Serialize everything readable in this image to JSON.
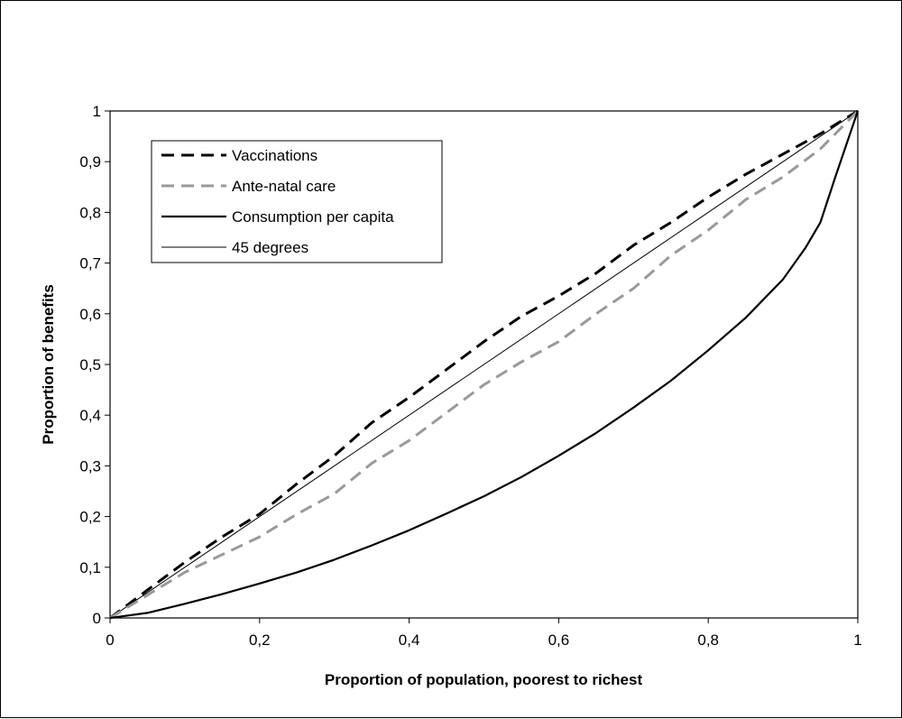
{
  "chart_data": {
    "type": "line",
    "title": "",
    "xlabel": "Proportion of population, poorest to richest",
    "ylabel": "Proportion of benefits",
    "xlim": [
      0,
      1
    ],
    "ylim": [
      0,
      1
    ],
    "grid": false,
    "legend_position": "top-left",
    "x_ticks": [
      {
        "value": 0,
        "label": "0"
      },
      {
        "value": 0.2,
        "label": "0,2"
      },
      {
        "value": 0.4,
        "label": "0,4"
      },
      {
        "value": 0.6,
        "label": "0,6"
      },
      {
        "value": 0.8,
        "label": "0,8"
      },
      {
        "value": 1,
        "label": "1"
      }
    ],
    "y_ticks": [
      {
        "value": 0,
        "label": "0"
      },
      {
        "value": 0.1,
        "label": "0,1"
      },
      {
        "value": 0.2,
        "label": "0,2"
      },
      {
        "value": 0.3,
        "label": "0,3"
      },
      {
        "value": 0.4,
        "label": "0,4"
      },
      {
        "value": 0.5,
        "label": "0,5"
      },
      {
        "value": 0.6,
        "label": "0,6"
      },
      {
        "value": 0.7,
        "label": "0,7"
      },
      {
        "value": 0.8,
        "label": "0,8"
      },
      {
        "value": 0.9,
        "label": "0,9"
      },
      {
        "value": 1,
        "label": "1"
      }
    ],
    "series": [
      {
        "name": "Vaccinations",
        "color": "#000000",
        "style": "dashed-thick",
        "x": [
          0,
          0.05,
          0.1,
          0.15,
          0.2,
          0.25,
          0.3,
          0.35,
          0.4,
          0.45,
          0.5,
          0.55,
          0.6,
          0.65,
          0.7,
          0.75,
          0.8,
          0.85,
          0.9,
          0.95,
          1
        ],
        "y": [
          0,
          0.055,
          0.11,
          0.16,
          0.205,
          0.265,
          0.32,
          0.385,
          0.435,
          0.49,
          0.545,
          0.595,
          0.635,
          0.68,
          0.735,
          0.78,
          0.83,
          0.875,
          0.915,
          0.955,
          1
        ]
      },
      {
        "name": "Ante-natal care",
        "color": "#999999",
        "style": "dashed-thick",
        "x": [
          0,
          0.05,
          0.1,
          0.15,
          0.2,
          0.25,
          0.3,
          0.35,
          0.4,
          0.45,
          0.5,
          0.55,
          0.6,
          0.65,
          0.7,
          0.75,
          0.8,
          0.85,
          0.9,
          0.95,
          1
        ],
        "y": [
          0,
          0.045,
          0.09,
          0.125,
          0.16,
          0.205,
          0.245,
          0.305,
          0.35,
          0.405,
          0.46,
          0.505,
          0.545,
          0.6,
          0.65,
          0.715,
          0.765,
          0.825,
          0.87,
          0.925,
          1
        ]
      },
      {
        "name": "Consumption per capita",
        "color": "#000000",
        "style": "solid-thick",
        "x": [
          0,
          0.05,
          0.1,
          0.15,
          0.2,
          0.25,
          0.3,
          0.35,
          0.4,
          0.45,
          0.5,
          0.55,
          0.6,
          0.65,
          0.7,
          0.75,
          0.8,
          0.85,
          0.9,
          0.93,
          0.95,
          0.97,
          1
        ],
        "y": [
          0,
          0.01,
          0.028,
          0.047,
          0.068,
          0.09,
          0.115,
          0.143,
          0.173,
          0.206,
          0.24,
          0.278,
          0.32,
          0.365,
          0.415,
          0.468,
          0.528,
          0.592,
          0.668,
          0.73,
          0.78,
          0.87,
          1
        ]
      },
      {
        "name": "45 degrees",
        "color": "#000000",
        "style": "solid-thin",
        "x": [
          0,
          1
        ],
        "y": [
          0,
          1
        ]
      }
    ]
  }
}
